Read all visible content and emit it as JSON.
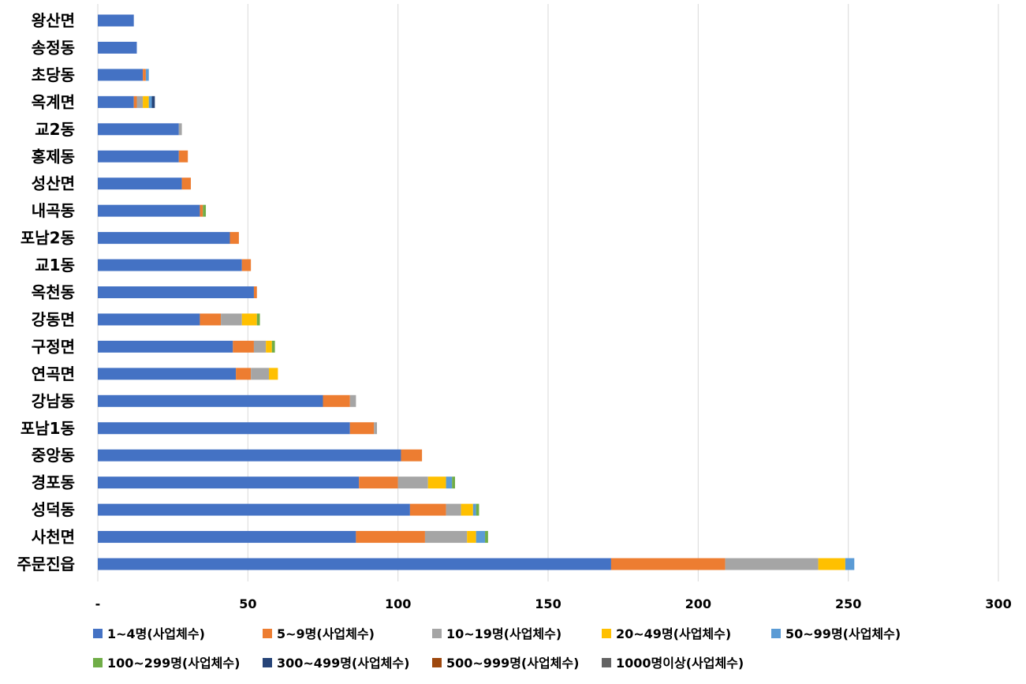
{
  "chart_data": {
    "type": "bar",
    "orientation": "horizontal",
    "stacked": true,
    "title": "",
    "xlabel": "",
    "ylabel": "",
    "xlim": [
      0,
      300
    ],
    "x_ticks": [
      0,
      50,
      100,
      150,
      200,
      250,
      300
    ],
    "x_tick_labels": [
      "-",
      "50",
      "100",
      "150",
      "200",
      "250",
      "300"
    ],
    "grid": "vertical",
    "legend_position": "bottom",
    "categories": [
      "왕산면",
      "송정동",
      "초당동",
      "옥계면",
      "교2동",
      "홍제동",
      "성산면",
      "내곡동",
      "포남2동",
      "교1동",
      "옥천동",
      "강동면",
      "구정면",
      "연곡면",
      "강남동",
      "포남1동",
      "중앙동",
      "경포동",
      "성덕동",
      "사천면",
      "주문진읍"
    ],
    "series": [
      {
        "name": "1~4명(사업체수)",
        "color": "#4472C4",
        "values": [
          12,
          13,
          15,
          12,
          27,
          27,
          28,
          34,
          44,
          48,
          52,
          34,
          45,
          46,
          75,
          84,
          101,
          87,
          104,
          86,
          171
        ]
      },
      {
        "name": "5~9명(사업체수)",
        "color": "#ED7D31",
        "values": [
          0,
          0,
          1,
          1,
          0,
          3,
          3,
          1,
          3,
          3,
          1,
          7,
          7,
          5,
          9,
          8,
          7,
          13,
          12,
          23,
          38
        ]
      },
      {
        "name": "10~19명(사업체수)",
        "color": "#A5A5A5",
        "values": [
          0,
          0,
          0,
          2,
          1,
          0,
          0,
          0,
          0,
          0,
          0,
          7,
          4,
          6,
          2,
          1,
          0,
          10,
          5,
          14,
          31
        ]
      },
      {
        "name": "20~49명(사업체수)",
        "color": "#FFC000",
        "values": [
          0,
          0,
          0,
          2,
          0,
          0,
          0,
          0,
          0,
          0,
          0,
          5,
          2,
          3,
          0,
          0,
          0,
          6,
          4,
          3,
          9
        ]
      },
      {
        "name": "50~99명(사업체수)",
        "color": "#5B9BD5",
        "values": [
          0,
          0,
          1,
          1,
          0,
          0,
          0,
          0,
          0,
          0,
          0,
          0,
          0,
          0,
          0,
          0,
          0,
          2,
          1,
          3,
          3
        ]
      },
      {
        "name": "100~299명(사업체수)",
        "color": "#70AD47",
        "values": [
          0,
          0,
          0,
          0,
          0,
          0,
          0,
          1,
          0,
          0,
          0,
          1,
          1,
          0,
          0,
          0,
          0,
          1,
          1,
          1,
          0
        ]
      },
      {
        "name": "300~499명(사업체수)",
        "color": "#264478",
        "values": [
          0,
          0,
          0,
          1,
          0,
          0,
          0,
          0,
          0,
          0,
          0,
          0,
          0,
          0,
          0,
          0,
          0,
          0,
          0,
          0,
          0
        ]
      },
      {
        "name": "500~999명(사업체수)",
        "color": "#9E480E",
        "values": [
          0,
          0,
          0,
          0,
          0,
          0,
          0,
          0,
          0,
          0,
          0,
          0,
          0,
          0,
          0,
          0,
          0,
          0,
          0,
          0,
          0
        ]
      },
      {
        "name": "1000명이상(사업체수)",
        "color": "#636363",
        "values": [
          0,
          0,
          0,
          0,
          0,
          0,
          0,
          0,
          0,
          0,
          0,
          0,
          0,
          0,
          0,
          0,
          0,
          0,
          0,
          0,
          0
        ]
      }
    ]
  }
}
